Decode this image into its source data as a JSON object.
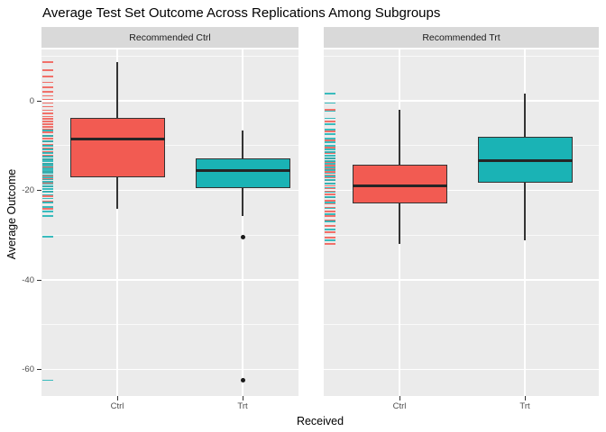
{
  "title": "Average Test Set Outcome Across Replications Among Subgroups",
  "colors": {
    "ctrl_fill": "#F25B52",
    "trt_fill": "#1AB3B5",
    "panel_bg": "#EBEBEB",
    "strip_bg": "#D9D9D9",
    "grid": "#FFFFFF",
    "box_border": "#333333",
    "median_line": "#252525",
    "outlier": "#1A1A1A",
    "tick_mark": "#333333",
    "tick_text": "#4D4D4D"
  },
  "chart_data": {
    "type": "boxplot",
    "title": "Average Test Set Outcome Across Replications Among Subgroups",
    "xlabel": "Received",
    "ylabel": "Average Outcome",
    "facet_labels": [
      "Recommended Ctrl",
      "Recommended Trt"
    ],
    "categories": [
      "Ctrl",
      "Trt"
    ],
    "ylim": [
      -66,
      11.5
    ],
    "y_major_ticks": [
      0,
      -20,
      -40,
      -60
    ],
    "y_minor_ticks": [
      10,
      -10,
      -30,
      -50
    ],
    "grid": "on",
    "legend": "none",
    "rug_note": "marginal rug of replication values drawn at left edge of each panel, colored by received group",
    "panels": [
      {
        "strip": "Recommended Ctrl",
        "boxes": [
          {
            "category": "Ctrl",
            "group": "ctrl",
            "whisker_low": -24.1,
            "q1": -17.1,
            "median": -8.6,
            "q3": -3.8,
            "whisker_high": 8.6,
            "outliers": []
          },
          {
            "category": "Trt",
            "group": "trt",
            "whisker_low": -25.7,
            "q1": -19.5,
            "median": -15.5,
            "q3": -12.9,
            "whisker_high": -6.6,
            "outliers": [
              -30.4,
              -62.4
            ]
          }
        ],
        "rug": {
          "ctrl_values": [
            8.6,
            6.9,
            5.4,
            4.1,
            3.0,
            2.0,
            1.1,
            0.3,
            -0.5,
            -1.3,
            -2.1,
            -2.8,
            -3.5,
            -4.1,
            -4.7,
            -5.3,
            -5.9,
            -6.5,
            -7.1,
            -7.8,
            -8.4,
            -9.1,
            -9.8,
            -10.6,
            -11.4,
            -12.2,
            -13.1,
            -14.0,
            -14.9,
            -15.8,
            -16.7,
            -17.5,
            -18.3,
            -19.2,
            -20.2,
            -21.3,
            -22.5,
            -24.1
          ],
          "trt_values": [
            -6.6,
            -7.9,
            -9.0,
            -10.0,
            -10.9,
            -11.7,
            -12.4,
            -13.0,
            -13.5,
            -14.0,
            -14.5,
            -15.0,
            -15.4,
            -15.8,
            -16.2,
            -16.6,
            -17.1,
            -17.6,
            -18.1,
            -18.6,
            -19.1,
            -19.7,
            -20.3,
            -21.0,
            -21.8,
            -22.7,
            -23.7,
            -24.8,
            -25.7,
            -30.4,
            -62.4
          ]
        }
      },
      {
        "strip": "Recommended Trt",
        "boxes": [
          {
            "category": "Ctrl",
            "group": "ctrl",
            "whisker_low": -31.9,
            "q1": -22.9,
            "median": -18.9,
            "q3": -14.3,
            "whisker_high": -2.0,
            "outliers": []
          },
          {
            "category": "Trt",
            "group": "trt",
            "whisker_low": -31.1,
            "q1": -18.3,
            "median": -13.3,
            "q3": -8.0,
            "whisker_high": 1.6,
            "outliers": []
          }
        ],
        "rug": {
          "ctrl_values": [
            -2.0,
            -4.6,
            -6.9,
            -8.8,
            -10.4,
            -11.7,
            -12.8,
            -13.7,
            -14.5,
            -15.2,
            -15.9,
            -16.6,
            -17.2,
            -17.8,
            -18.4,
            -19.0,
            -19.6,
            -20.2,
            -20.9,
            -21.6,
            -22.3,
            -23.0,
            -23.8,
            -24.7,
            -25.7,
            -26.8,
            -28.0,
            -29.3,
            -30.6,
            -31.9
          ],
          "trt_values": [
            1.6,
            -0.5,
            -2.3,
            -3.9,
            -5.3,
            -6.5,
            -7.5,
            -8.4,
            -9.2,
            -10.0,
            -10.8,
            -11.5,
            -12.2,
            -12.9,
            -13.5,
            -14.1,
            -14.8,
            -15.5,
            -16.2,
            -16.9,
            -17.7,
            -18.5,
            -19.4,
            -20.4,
            -21.5,
            -22.7,
            -24.0,
            -25.4,
            -26.9,
            -28.7,
            -31.1
          ]
        }
      }
    ]
  }
}
